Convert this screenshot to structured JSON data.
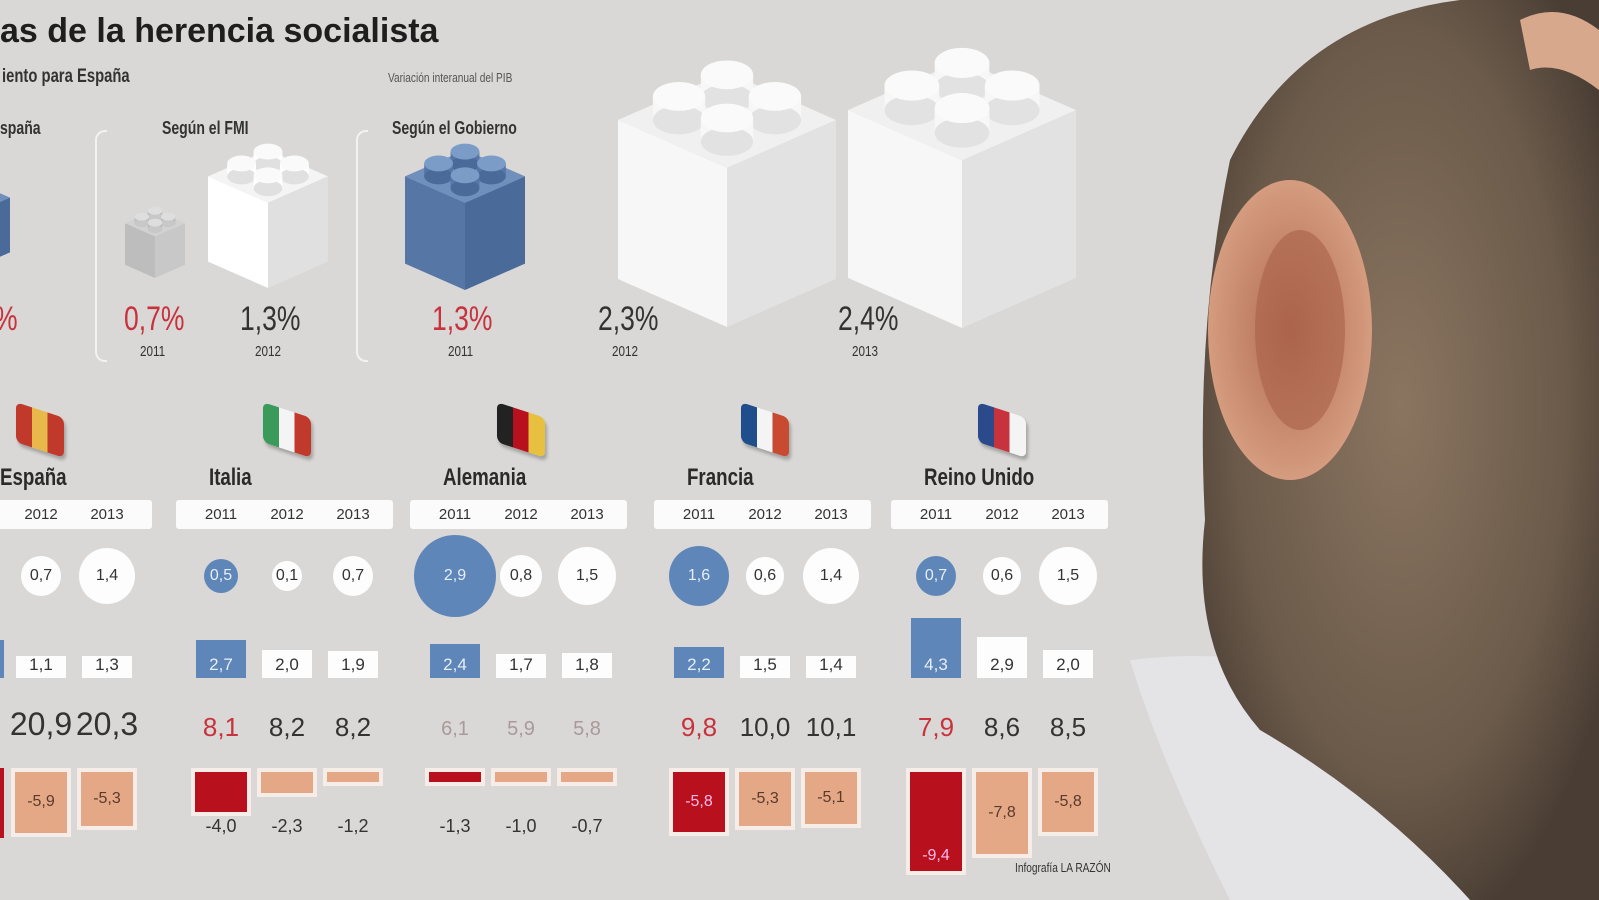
{
  "header": {
    "title": "as de la herencia socialista",
    "subtitle": "iento para España",
    "note": "Variación interanual del PIB"
  },
  "forecast": {
    "partial_source": "spaña",
    "partial_pct": "%",
    "groups": [
      {
        "source": "Según el FMI",
        "items": [
          {
            "value": "0,7%",
            "year": "2011",
            "highlight": true
          },
          {
            "value": "1,3%",
            "year": "2012",
            "highlight": false
          }
        ]
      },
      {
        "source": "Según el Gobierno",
        "items": [
          {
            "value": "1,3%",
            "year": "2011",
            "highlight": true
          },
          {
            "value": "2,3%",
            "year": "2012",
            "highlight": false
          },
          {
            "value": "2,4%",
            "year": "2013",
            "highlight": false
          }
        ]
      }
    ]
  },
  "colors": {
    "highlight_blue": "#5f86b8",
    "highlight_red": "#b8101c",
    "deficit_salmon": "#e4a887",
    "text_red": "#c8323c"
  },
  "chart_data": {
    "type": "table",
    "title": "as de la herencia socialista",
    "years": [
      "2011",
      "2012",
      "2013"
    ],
    "countries": [
      {
        "name": "España",
        "flag": "spain-flag-brick",
        "years": [
          "2012",
          "2013"
        ],
        "growth": [
          0.7,
          1.4
        ],
        "growth_labels": [
          "0,7",
          "1,4"
        ],
        "inflation": [
          1.1,
          1.3
        ],
        "inflation_labels": [
          "1,1",
          "1,3"
        ],
        "unemployment_labels": [
          "20,9",
          "20,3"
        ],
        "deficit": [
          -5.9,
          -5.3
        ],
        "deficit_labels": [
          "-5,9",
          "-5,3"
        ]
      },
      {
        "name": "Italia",
        "flag": "italy-flag-brick",
        "years": [
          "2011",
          "2012",
          "2013"
        ],
        "growth": [
          0.5,
          0.1,
          0.7
        ],
        "growth_labels": [
          "0,5",
          "0,1",
          "0,7"
        ],
        "inflation": [
          2.7,
          2.0,
          1.9
        ],
        "inflation_labels": [
          "2,7",
          "2,0",
          "1,9"
        ],
        "unemployment_labels": [
          "8,1",
          "8,2",
          "8,2"
        ],
        "deficit": [
          -4.0,
          -2.3,
          -1.2
        ],
        "deficit_labels": [
          "-4,0",
          "-2,3",
          "-1,2"
        ]
      },
      {
        "name": "Alemania",
        "flag": "germany-flag-brick",
        "years": [
          "2011",
          "2012",
          "2013"
        ],
        "growth": [
          2.9,
          0.8,
          1.5
        ],
        "growth_labels": [
          "2,9",
          "0,8",
          "1,5"
        ],
        "inflation": [
          2.4,
          1.7,
          1.8
        ],
        "inflation_labels": [
          "2,4",
          "1,7",
          "1,8"
        ],
        "unemployment_labels": [
          "6,1",
          "5,9",
          "5,8"
        ],
        "deficit": [
          -1.3,
          -1.0,
          -0.7
        ],
        "deficit_labels": [
          "-1,3",
          "-1,0",
          "-0,7"
        ]
      },
      {
        "name": "Francia",
        "flag": "france-flag-brick",
        "years": [
          "2011",
          "2012",
          "2013"
        ],
        "growth": [
          1.6,
          0.6,
          1.4
        ],
        "growth_labels": [
          "1,6",
          "0,6",
          "1,4"
        ],
        "inflation": [
          2.2,
          1.5,
          1.4
        ],
        "inflation_labels": [
          "2,2",
          "1,5",
          "1,4"
        ],
        "unemployment_labels": [
          "9,8",
          "10,0",
          "10,1"
        ],
        "deficit": [
          -5.8,
          -5.3,
          -5.1
        ],
        "deficit_labels": [
          "-5,8",
          "-5,3",
          "-5,1"
        ]
      },
      {
        "name": "Reino Unido",
        "flag": "uk-flag-brick",
        "years": [
          "2011",
          "2012",
          "2013"
        ],
        "growth": [
          0.7,
          0.6,
          1.5
        ],
        "growth_labels": [
          "0,7",
          "0,6",
          "1,5"
        ],
        "inflation": [
          4.3,
          2.9,
          2.0
        ],
        "inflation_labels": [
          "4,3",
          "2,9",
          "2,0"
        ],
        "unemployment_labels": [
          "7,9",
          "8,6",
          "8,5"
        ],
        "deficit": [
          -9.4,
          -7.8,
          -5.8
        ],
        "deficit_labels": [
          "-9,4",
          "-7,8",
          "-5,8"
        ]
      }
    ]
  },
  "footer": {
    "credit": "Infografía LA RAZÓN"
  }
}
